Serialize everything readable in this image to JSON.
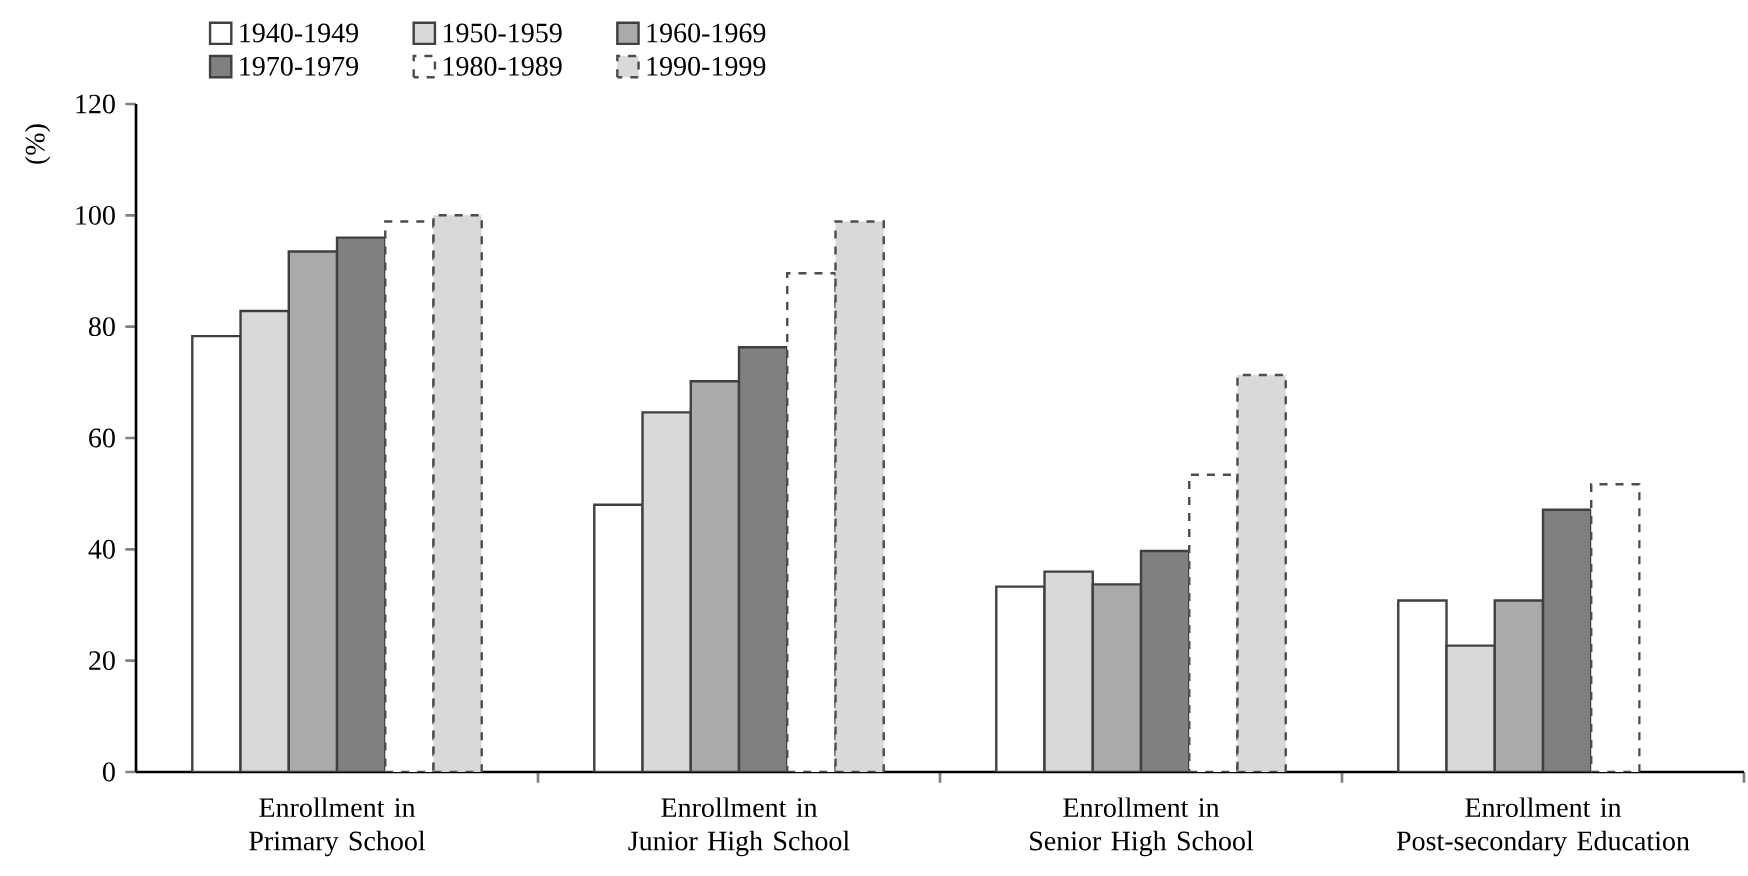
{
  "chart_data": {
    "type": "bar",
    "ylabel": "(%)",
    "categories": [
      "Enrollment in Primary School",
      "Enrollment in Junior High School",
      "Enrollment in Senior High School",
      "Enrollment in Post-secondary Education"
    ],
    "ylim": [
      0,
      120
    ],
    "yticks": [
      0,
      20,
      40,
      60,
      80,
      100,
      120
    ],
    "legend": "top",
    "grid": false,
    "series": [
      {
        "name": "1940-1949",
        "color": "#ffffff",
        "values": [
          78.3,
          48,
          33.3,
          30.8
        ]
      },
      {
        "name": "1950-1959",
        "color": "#d9d9d9",
        "values": [
          82.8,
          64.6,
          36,
          22.7
        ]
      },
      {
        "name": "1960-1969",
        "color": "#aaaaaa",
        "values": [
          93.5,
          70.2,
          33.7,
          30.8
        ]
      },
      {
        "name": "1970-1979",
        "color": "#808080",
        "values": [
          96,
          76.3,
          39.7,
          47.1
        ]
      },
      {
        "name": "1980-1989",
        "color": "#ffffff",
        "line_style": "dashed",
        "values": [
          98.9,
          89.6,
          53.4,
          51.7
        ]
      },
      {
        "name": "1990-1999",
        "color": "#d9d9d9",
        "line_style": "dashed",
        "values": [
          100,
          98.9,
          71.3,
          null
        ]
      }
    ]
  }
}
